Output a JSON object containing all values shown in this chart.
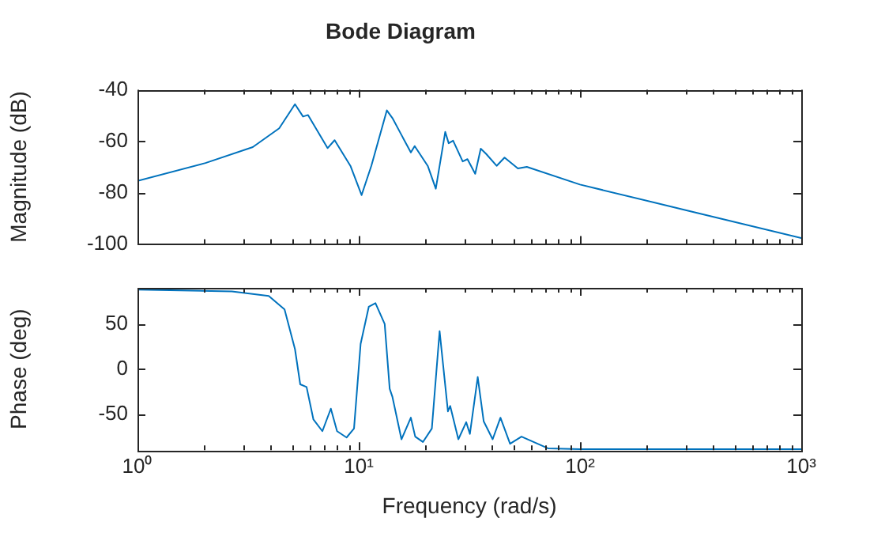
{
  "chart_data": [
    {
      "type": "line",
      "title": "Bode Diagram",
      "ylabel": "Magnitude (dB)",
      "log": "x",
      "grid": false,
      "legend": false,
      "marker": "none",
      "line_style": "solid",
      "tick_labels": "y",
      "xlim": [
        1,
        1000
      ],
      "ylim": [
        -100,
        -40
      ],
      "yticks": [
        -100,
        -80,
        -60,
        -40
      ],
      "xticks": [
        {
          "value": 1,
          "label": null
        },
        {
          "value": 2,
          "label": null
        },
        {
          "value": 3,
          "label": null
        },
        {
          "value": 4,
          "label": null
        },
        {
          "value": 5,
          "label": null
        },
        {
          "value": 6,
          "label": null
        },
        {
          "value": 7,
          "label": null
        },
        {
          "value": 8,
          "label": null
        },
        {
          "value": 9,
          "label": null
        },
        {
          "value": 10,
          "label": null
        },
        {
          "value": 20,
          "label": null
        },
        {
          "value": 30,
          "label": null
        },
        {
          "value": 40,
          "label": null
        },
        {
          "value": 50,
          "label": null
        },
        {
          "value": 60,
          "label": null
        },
        {
          "value": 70,
          "label": null
        },
        {
          "value": 80,
          "label": null
        },
        {
          "value": 90,
          "label": null
        },
        {
          "value": 100,
          "label": null
        },
        {
          "value": 200,
          "label": null
        },
        {
          "value": 300,
          "label": null
        },
        {
          "value": 400,
          "label": null
        },
        {
          "value": 500,
          "label": null
        },
        {
          "value": 600,
          "label": null
        },
        {
          "value": 700,
          "label": null
        },
        {
          "value": 800,
          "label": null
        },
        {
          "value": 900,
          "label": null
        },
        {
          "value": 1000,
          "label": null
        }
      ],
      "series": [
        {
          "color": "#0072bd",
          "x": [
            1,
            2.03,
            3.32,
            4.37,
            5.15,
            5.6,
            5.9,
            7.23,
            7.78,
            9.17,
            10.3,
            11.4,
            13.4,
            14.2,
            17.2,
            17.9,
            20.5,
            22.3,
            24.6,
            25.5,
            26.7,
            29.5,
            31,
            33.6,
            35.6,
            37.7,
            42,
            45.6,
            52.4,
            57.5,
            100,
            316,
            1000
          ],
          "values": [
            -75.5,
            -68.5,
            -62.3,
            -55,
            -45.6,
            -50.4,
            -49.8,
            -62.7,
            -59.6,
            -69.6,
            -81,
            -69.6,
            -48,
            -51,
            -64.4,
            -61.9,
            -69.6,
            -78.5,
            -56.4,
            -60.8,
            -59.8,
            -67.9,
            -67,
            -72.7,
            -62.9,
            -65,
            -69.6,
            -66.4,
            -70.6,
            -70,
            -76.9,
            -87.3,
            -97.7
          ]
        }
      ]
    },
    {
      "type": "line",
      "xlabel": "Frequency (rad/s)",
      "ylabel": "Phase (deg)",
      "log": "x",
      "grid": false,
      "legend": false,
      "marker": "none",
      "line_style": "solid",
      "xlim": [
        1,
        1000
      ],
      "ylim": [
        -90,
        90
      ],
      "yticks": [
        -50,
        0,
        50
      ],
      "xticks": [
        {
          "value": 1,
          "label": "10⁰"
        },
        {
          "value": 2,
          "label": null
        },
        {
          "value": 3,
          "label": null
        },
        {
          "value": 4,
          "label": null
        },
        {
          "value": 5,
          "label": null
        },
        {
          "value": 6,
          "label": null
        },
        {
          "value": 7,
          "label": null
        },
        {
          "value": 8,
          "label": null
        },
        {
          "value": 9,
          "label": null
        },
        {
          "value": 10,
          "label": "10¹"
        },
        {
          "value": 20,
          "label": null
        },
        {
          "value": 30,
          "label": null
        },
        {
          "value": 40,
          "label": null
        },
        {
          "value": 50,
          "label": null
        },
        {
          "value": 60,
          "label": null
        },
        {
          "value": 70,
          "label": null
        },
        {
          "value": 80,
          "label": null
        },
        {
          "value": 90,
          "label": null
        },
        {
          "value": 100,
          "label": "10²"
        },
        {
          "value": 200,
          "label": null
        },
        {
          "value": 300,
          "label": null
        },
        {
          "value": 400,
          "label": null
        },
        {
          "value": 500,
          "label": null
        },
        {
          "value": 600,
          "label": null
        },
        {
          "value": 700,
          "label": null
        },
        {
          "value": 800,
          "label": null
        },
        {
          "value": 900,
          "label": null
        },
        {
          "value": 1000,
          "label": "10³"
        }
      ],
      "series": [
        {
          "color": "#0072bd",
          "x": [
            1,
            2.67,
            3.92,
            4.62,
            5.15,
            5.44,
            5.81,
            6.24,
            6.85,
            7.48,
            7.98,
            8.81,
            9.52,
            10.2,
            11.1,
            11.9,
            13.1,
            13.8,
            14.2,
            15.6,
            17.2,
            18,
            19.5,
            21.4,
            23.2,
            25.3,
            25.9,
            28.2,
            30.6,
            31.8,
            34.5,
            36.7,
            40.3,
            43.7,
            48.3,
            54.4,
            71.6,
            100,
            1000
          ],
          "values": [
            88,
            86,
            81,
            66,
            22,
            -17,
            -20,
            -56,
            -69,
            -44,
            -69,
            -76,
            -66,
            28,
            69,
            73,
            50,
            -22,
            -31,
            -78,
            -54,
            -75,
            -81,
            -66,
            42,
            -47,
            -41,
            -78,
            -59,
            -72,
            -9,
            -58,
            -78,
            -54,
            -83,
            -75,
            -88,
            -89,
            -89
          ]
        }
      ]
    }
  ]
}
